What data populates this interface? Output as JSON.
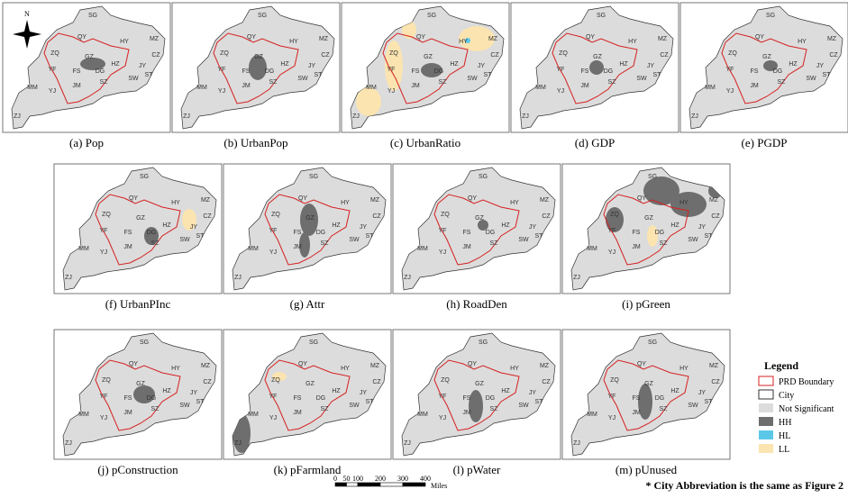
{
  "compass": "N",
  "panels": [
    {
      "label": "(a) Pop"
    },
    {
      "label": "(b) UrbanPop"
    },
    {
      "label": "(c) UrbanRatio"
    },
    {
      "label": "(d) GDP"
    },
    {
      "label": "(e) PGDP"
    },
    {
      "label": "(f) UrbanPInc"
    },
    {
      "label": "(g) Attr"
    },
    {
      "label": "(h) RoadDen"
    },
    {
      "label": "(i) pGreen"
    },
    {
      "label": "(j) pConstruction"
    },
    {
      "label": "(k) pFarmland"
    },
    {
      "label": "(l) pWater"
    },
    {
      "label": "(m) pUnused"
    }
  ],
  "cities": [
    "SG",
    "QY",
    "HY",
    "MZ",
    "ZQ",
    "GZ",
    "HZ",
    "YF",
    "FS",
    "DG",
    "SZ",
    "JM",
    "JY",
    "CZ",
    "ST",
    "SW",
    "MM",
    "YJ",
    "ZJ"
  ],
  "legend": {
    "title": "Legend",
    "items": [
      "PRD Boundary",
      "City",
      "Not Significant",
      "HH",
      "HL",
      "LL"
    ]
  },
  "scale_bar": {
    "ticks": [
      0,
      50,
      100,
      200,
      300,
      400
    ],
    "unit": "Miles"
  },
  "footnote": "* City Abbreviation is the same as Figure 2"
}
